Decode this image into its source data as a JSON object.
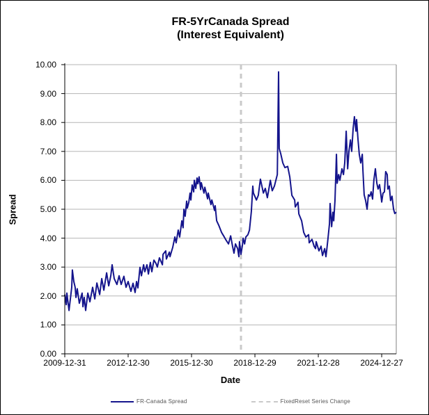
{
  "title": {
    "line1": "FR-5YrCanada Spread",
    "line2": "(Interest Equivalent)"
  },
  "axes": {
    "x_label": "Date",
    "y_label": "Spread",
    "y_ticks": [
      {
        "label": "0.00",
        "value": 0
      },
      {
        "label": "1.00",
        "value": 1
      },
      {
        "label": "2.00",
        "value": 2
      },
      {
        "label": "3.00",
        "value": 3
      },
      {
        "label": "4.00",
        "value": 4
      },
      {
        "label": "5.00",
        "value": 5
      },
      {
        "label": "6.00",
        "value": 6
      },
      {
        "label": "7.00",
        "value": 7
      },
      {
        "label": "8.00",
        "value": 8
      },
      {
        "label": "9.00",
        "value": 9
      },
      {
        "label": "10.00",
        "value": 10
      }
    ],
    "x_ticks": [
      {
        "label": "2009-12-31",
        "year": 2010.0
      },
      {
        "label": "2012-12-30",
        "year": 2013.0
      },
      {
        "label": "2015-12-30",
        "year": 2016.0
      },
      {
        "label": "2018-12-29",
        "year": 2019.0
      },
      {
        "label": "2021-12-28",
        "year": 2022.0
      },
      {
        "label": "2024-12-27",
        "year": 2025.0
      }
    ]
  },
  "legend": {
    "series_label": "FR-Canada Spread",
    "marker_label": "FixedReset Series Change"
  },
  "colors": {
    "series": "#14148c",
    "grid": "#b5b5b5",
    "marker": "#c9c9c9",
    "axis": "#000000",
    "plot_right_border": "#808080"
  },
  "chart_data": {
    "type": "line",
    "title": "FR-5YrCanada Spread (Interest Equivalent)",
    "xlabel": "Date",
    "ylabel": "Spread",
    "x_range": [
      2010.0,
      2025.69
    ],
    "ylim": [
      0,
      10
    ],
    "grid": "horizontal",
    "legend_position": "bottom",
    "marker": {
      "type": "vline",
      "x": 2018.34,
      "label": "FixedReset Series Change",
      "style": "dashed"
    },
    "series": [
      {
        "name": "FR-Canada Spread",
        "color": "#14148c",
        "x": [
          2010.0,
          2010.07,
          2010.1,
          2010.2,
          2010.33,
          2010.36,
          2010.43,
          2010.49,
          2010.53,
          2010.59,
          2010.69,
          2010.82,
          2010.86,
          2010.92,
          2010.99,
          2011.09,
          2011.19,
          2011.32,
          2011.42,
          2011.52,
          2011.65,
          2011.75,
          2011.85,
          2011.98,
          2012.08,
          2012.18,
          2012.24,
          2012.34,
          2012.47,
          2012.57,
          2012.67,
          2012.8,
          2012.9,
          2013.0,
          2013.13,
          2013.23,
          2013.33,
          2013.4,
          2013.46,
          2013.56,
          2013.63,
          2013.73,
          2013.79,
          2013.89,
          2013.96,
          2014.05,
          2014.12,
          2014.22,
          2014.32,
          2014.38,
          2014.48,
          2014.62,
          2014.65,
          2014.78,
          2014.81,
          2014.95,
          2014.98,
          2015.11,
          2015.21,
          2015.27,
          2015.37,
          2015.44,
          2015.54,
          2015.6,
          2015.64,
          2015.7,
          2015.77,
          2015.8,
          2015.87,
          2015.93,
          2015.97,
          2016.03,
          2016.1,
          2016.13,
          2016.2,
          2016.26,
          2016.3,
          2016.36,
          2016.43,
          2016.46,
          2016.59,
          2016.63,
          2016.76,
          2016.79,
          2016.92,
          2016.96,
          2017.09,
          2017.12,
          2017.19,
          2017.29,
          2017.42,
          2017.52,
          2017.61,
          2017.75,
          2017.85,
          2017.94,
          2018.01,
          2018.08,
          2018.18,
          2018.24,
          2018.27,
          2018.34,
          2018.41,
          2018.44,
          2018.51,
          2018.57,
          2018.67,
          2018.74,
          2018.83,
          2018.9,
          2018.93,
          2019.07,
          2019.16,
          2019.26,
          2019.4,
          2019.49,
          2019.59,
          2019.73,
          2019.82,
          2019.92,
          2020.06,
          2020.12,
          2020.15,
          2020.22,
          2020.32,
          2020.42,
          2020.55,
          2020.65,
          2020.75,
          2020.88,
          2020.91,
          2021.04,
          2021.08,
          2021.21,
          2021.31,
          2021.41,
          2021.54,
          2021.57,
          2021.7,
          2021.8,
          2021.87,
          2021.9,
          2022.03,
          2022.13,
          2022.2,
          2022.3,
          2022.36,
          2022.4,
          2022.46,
          2022.53,
          2022.56,
          2022.63,
          2022.69,
          2022.73,
          2022.79,
          2022.86,
          2022.89,
          2022.96,
          2023.02,
          2023.12,
          2023.19,
          2023.25,
          2023.32,
          2023.39,
          2023.45,
          2023.52,
          2023.58,
          2023.65,
          2023.71,
          2023.78,
          2023.81,
          2023.88,
          2023.94,
          2024.01,
          2024.08,
          2024.11,
          2024.17,
          2024.24,
          2024.31,
          2024.37,
          2024.44,
          2024.5,
          2024.57,
          2024.63,
          2024.7,
          2024.77,
          2024.83,
          2024.9,
          2024.96,
          2025.0,
          2025.06,
          2025.13,
          2025.19,
          2025.26,
          2025.29,
          2025.36,
          2025.42,
          2025.49,
          2025.56,
          2025.62,
          2025.69
        ],
        "values": [
          2.05,
          1.7,
          2.1,
          1.5,
          2.3,
          2.9,
          2.5,
          2.3,
          1.95,
          2.25,
          1.75,
          2.1,
          1.63,
          1.95,
          1.5,
          2.1,
          1.8,
          2.3,
          1.9,
          2.45,
          2.05,
          2.6,
          2.2,
          2.8,
          2.35,
          2.7,
          3.08,
          2.6,
          2.4,
          2.7,
          2.4,
          2.68,
          2.3,
          2.5,
          2.16,
          2.44,
          2.12,
          2.5,
          2.28,
          2.99,
          2.7,
          3.08,
          2.84,
          3.08,
          2.76,
          3.16,
          2.84,
          3.24,
          3.12,
          3.0,
          3.32,
          3.08,
          3.44,
          3.56,
          3.28,
          3.52,
          3.36,
          3.68,
          4.04,
          3.84,
          4.28,
          4.04,
          4.6,
          4.36,
          5.0,
          4.76,
          5.28,
          5.04,
          5.24,
          5.56,
          5.32,
          5.84,
          5.6,
          6.0,
          5.72,
          6.08,
          5.88,
          6.12,
          5.68,
          5.92,
          5.56,
          5.76,
          5.36,
          5.56,
          5.16,
          5.32,
          4.96,
          5.12,
          4.6,
          4.44,
          4.2,
          4.08,
          3.96,
          3.8,
          4.08,
          3.72,
          3.48,
          3.8,
          3.64,
          3.36,
          3.88,
          3.44,
          3.76,
          4.0,
          3.8,
          4.04,
          4.12,
          4.28,
          4.92,
          5.8,
          5.56,
          5.32,
          5.48,
          6.04,
          5.56,
          5.72,
          5.4,
          6.0,
          5.64,
          5.8,
          6.2,
          9.75,
          7.1,
          6.92,
          6.6,
          6.44,
          6.48,
          6.12,
          5.48,
          5.32,
          5.08,
          5.24,
          4.84,
          4.6,
          4.2,
          4.04,
          4.12,
          3.84,
          3.96,
          3.72,
          3.64,
          3.88,
          3.56,
          3.72,
          3.4,
          3.64,
          3.36,
          3.6,
          4.0,
          4.5,
          5.2,
          4.4,
          4.9,
          4.6,
          5.3,
          6.9,
          5.9,
          6.2,
          6.0,
          6.4,
          6.2,
          6.6,
          7.7,
          6.4,
          7.0,
          7.4,
          7.0,
          7.8,
          8.2,
          7.7,
          8.1,
          7.4,
          6.9,
          6.6,
          6.9,
          6.35,
          5.5,
          5.3,
          5.0,
          5.5,
          5.45,
          5.6,
          5.35,
          6.0,
          6.4,
          5.9,
          5.7,
          5.85,
          5.5,
          5.25,
          5.55,
          5.6,
          6.3,
          6.2,
          5.7,
          5.8,
          5.3,
          5.45,
          5.0,
          4.85,
          4.9
        ]
      }
    ]
  }
}
